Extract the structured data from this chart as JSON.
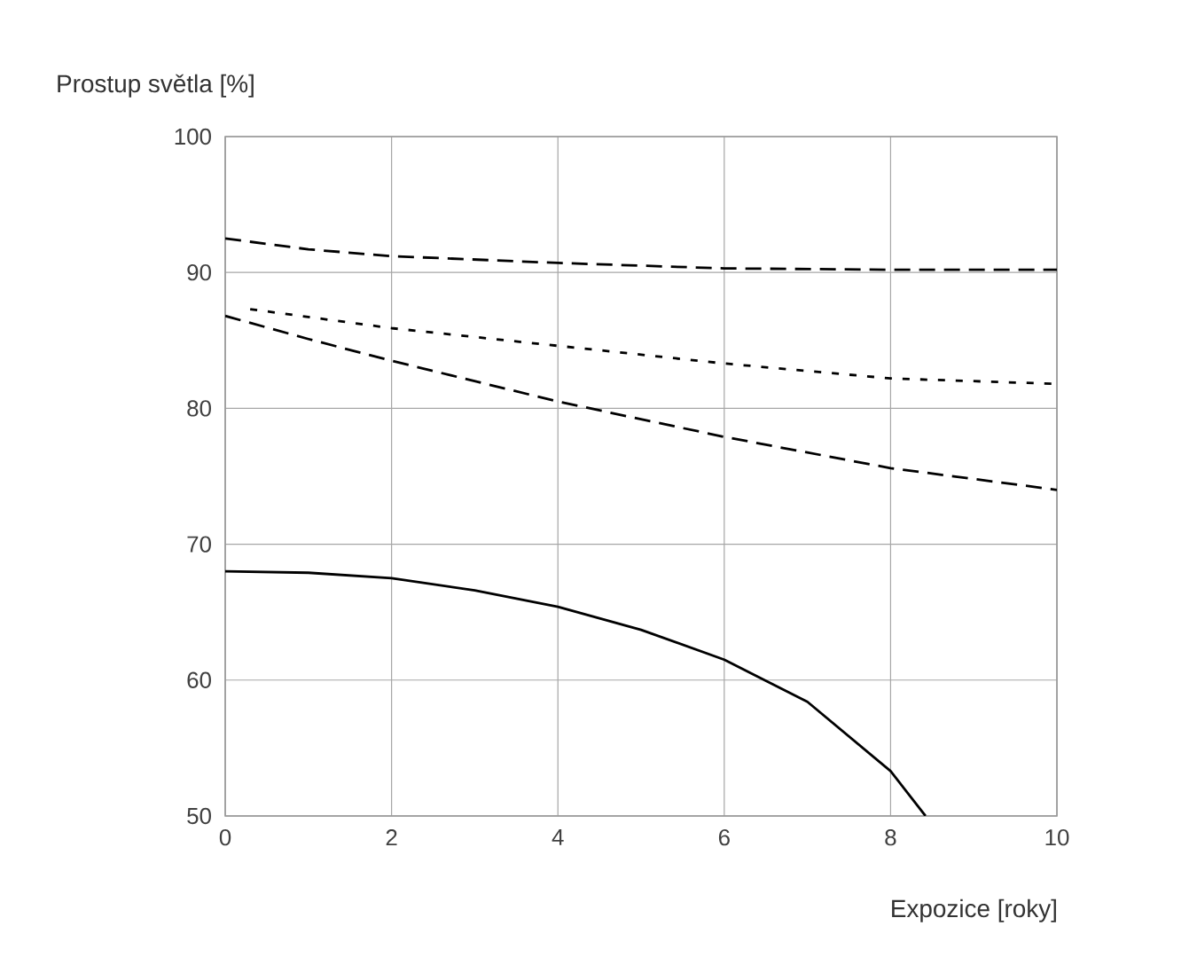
{
  "chart_data": {
    "type": "line",
    "xlabel": "Expozice [roky]",
    "ylabel": "Prostup světla [%]",
    "x": [
      0,
      1,
      2,
      4,
      6,
      8,
      10
    ],
    "series": [
      {
        "color": "#000000",
        "line_style": "dashed",
        "values": [
          92.5,
          91.7,
          91.2,
          90.7,
          90.3,
          90.2,
          90.2
        ]
      },
      {
        "color": "#000000",
        "line_style": "dotted",
        "x": [
          0.3,
          2,
          4,
          6,
          8,
          10
        ],
        "values": [
          87.3,
          85.9,
          84.6,
          83.3,
          82.2,
          81.8
        ]
      },
      {
        "color": "#000000",
        "line_style": "dashed",
        "values": [
          86.8,
          85.1,
          83.5,
          80.5,
          77.9,
          75.6,
          74.0
        ]
      },
      {
        "color": "#000000",
        "line_style": "solid",
        "x": [
          0,
          1,
          2,
          3,
          4,
          5,
          6,
          7,
          8,
          8.42
        ],
        "values": [
          68.0,
          67.9,
          67.5,
          66.6,
          65.4,
          63.7,
          61.5,
          58.4,
          53.3,
          50.0
        ]
      }
    ],
    "xlim": [
      0,
      10
    ],
    "ylim": [
      50,
      100
    ],
    "xticks": [
      0,
      2,
      4,
      6,
      8,
      10
    ],
    "yticks": [
      50,
      60,
      70,
      80,
      90,
      100
    ],
    "grid": true,
    "marker": "none"
  }
}
